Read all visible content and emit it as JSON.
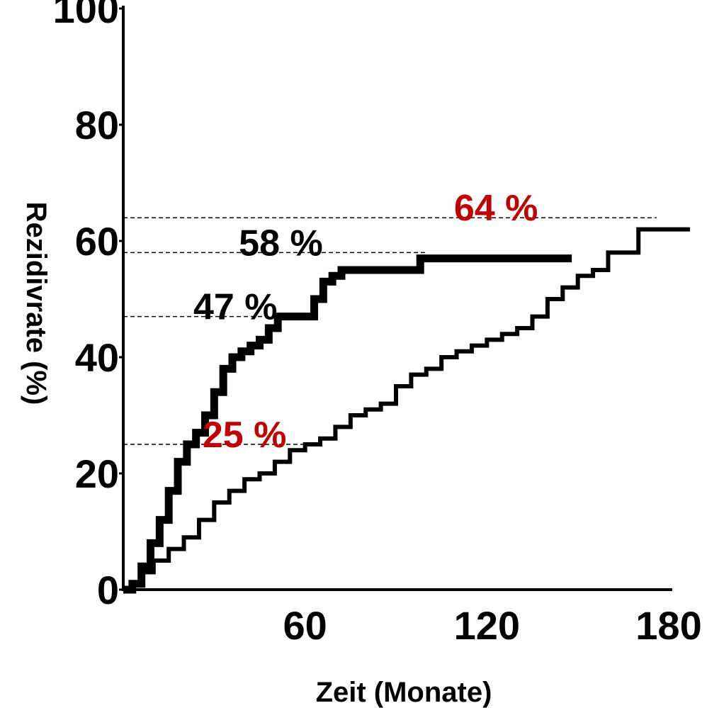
{
  "chart_data": {
    "type": "line",
    "xlabel": "Zeit (Monate)",
    "ylabel": "Rezidivrate (%)",
    "xlim": [
      0,
      180
    ],
    "ylim": [
      0,
      100
    ],
    "x_ticks": [
      {
        "value": 60,
        "label": "60"
      },
      {
        "value": 120,
        "label": "120"
      },
      {
        "value": 180,
        "label": "180"
      }
    ],
    "y_ticks": [
      {
        "value": 0,
        "label": "0"
      },
      {
        "value": 20,
        "label": "20"
      },
      {
        "value": 40,
        "label": "40"
      },
      {
        "value": 60,
        "label": "60"
      },
      {
        "value": 80,
        "label": "80"
      },
      {
        "value": 100,
        "label": "100"
      }
    ],
    "grid": false,
    "legend": "none",
    "series": [
      {
        "color": "#000000",
        "style": "thick",
        "x": [
          0,
          3,
          6,
          9,
          12,
          15,
          18,
          21,
          24,
          27,
          30,
          33,
          36,
          39,
          42,
          45,
          48,
          51,
          54,
          57,
          60,
          63,
          66,
          69,
          72,
          80,
          90,
          96,
          98,
          110,
          120,
          130,
          148
        ],
        "y": [
          0,
          1,
          4,
          8,
          12,
          17,
          22,
          25,
          27,
          30,
          34,
          38,
          40,
          41,
          42,
          43,
          45,
          47,
          47,
          47,
          47,
          50,
          53,
          54,
          55,
          55,
          55,
          55,
          57,
          57,
          57,
          57,
          57
        ]
      },
      {
        "color": "#000000",
        "style": "thin",
        "x": [
          0,
          3,
          6,
          10,
          15,
          20,
          25,
          30,
          35,
          40,
          45,
          50,
          55,
          60,
          65,
          70,
          75,
          80,
          85,
          90,
          95,
          100,
          105,
          110,
          115,
          120,
          125,
          130,
          135,
          140,
          145,
          150,
          155,
          158,
          160,
          165,
          170,
          175,
          180,
          187
        ],
        "y": [
          0,
          1,
          3,
          5,
          7,
          9,
          12,
          15,
          17,
          19,
          20,
          22,
          24,
          25,
          26,
          28,
          30,
          31,
          32,
          35,
          37,
          38,
          40,
          41,
          42,
          43,
          44,
          45,
          47,
          50,
          52,
          54,
          55,
          55,
          58,
          58,
          62,
          62,
          62,
          62
        ]
      }
    ],
    "reference_lines": [
      {
        "y": 64,
        "x_from": 0,
        "x_to": 176
      },
      {
        "y": 58,
        "x_from": 0,
        "x_to": 100
      },
      {
        "y": 47,
        "x_from": 0,
        "x_to": 52
      },
      {
        "y": 25,
        "x_from": 0,
        "x_to": 62
      }
    ],
    "annotations": [
      {
        "text": "64 %",
        "x": 123,
        "y": 64,
        "color": "#c00000"
      },
      {
        "text": "58 %",
        "x": 52,
        "y": 58,
        "color": "#000000"
      },
      {
        "text": "47 %",
        "x": 37,
        "y": 47,
        "color": "#000000"
      },
      {
        "text": "25 %",
        "x": 40,
        "y": 25,
        "color": "#c00000"
      }
    ]
  }
}
